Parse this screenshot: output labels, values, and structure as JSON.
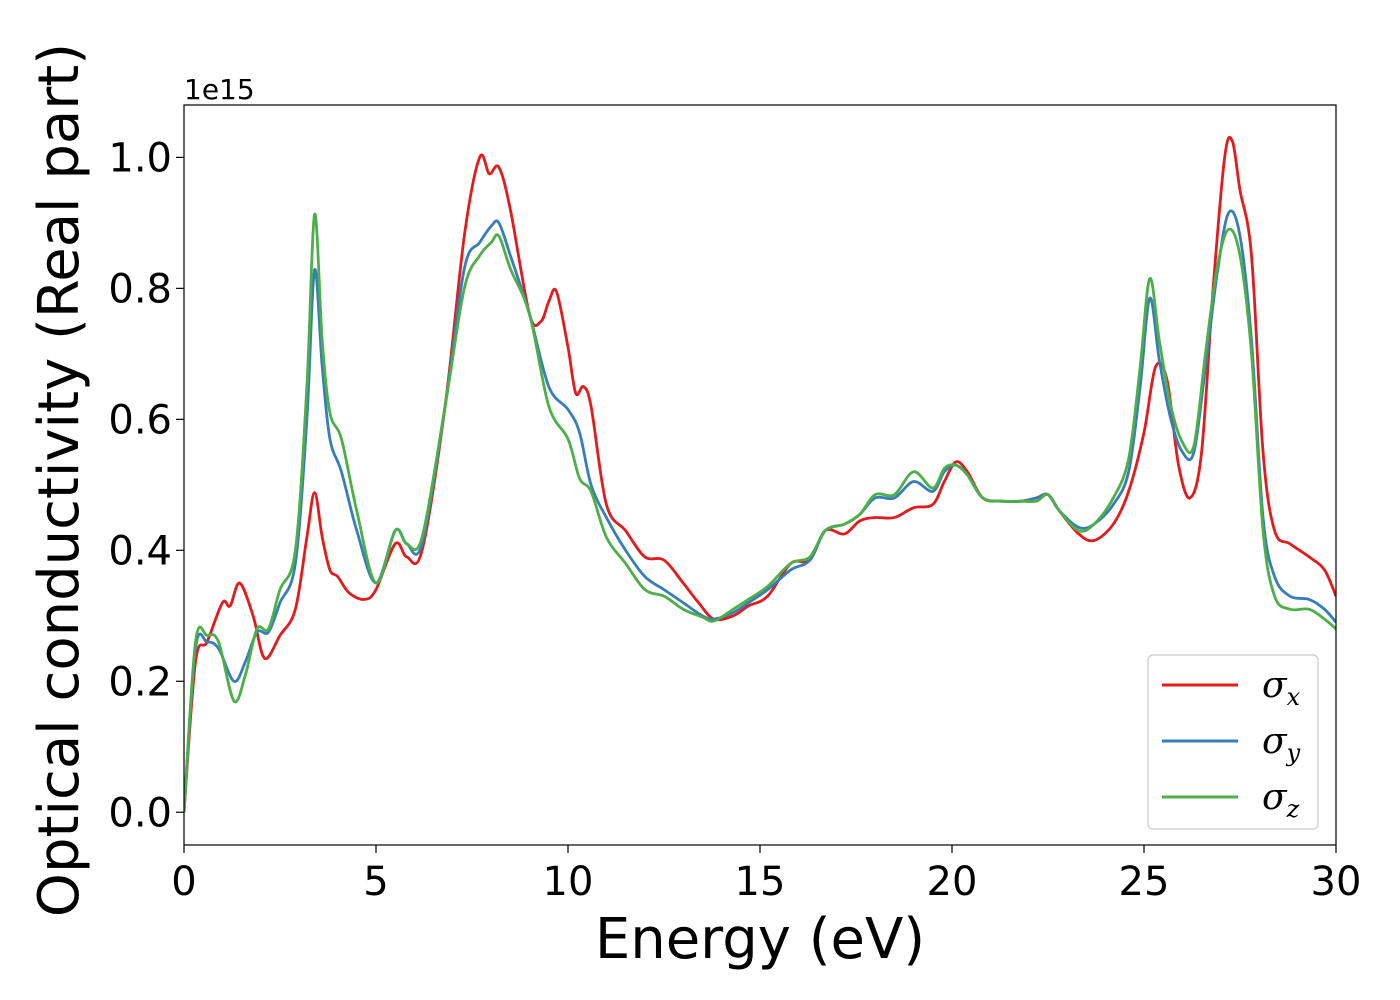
{
  "chart_data": {
    "type": "line",
    "title": "",
    "xlabel": "Energy (eV)",
    "ylabel": "Optical conductivity (Real part)",
    "y_offset_label": "1e15",
    "xlim": [
      0,
      30
    ],
    "ylim": [
      -0.05,
      1.08
    ],
    "xticks": [
      0,
      5,
      10,
      15,
      20,
      25,
      30
    ],
    "xtick_labels": [
      "0",
      "5",
      "10",
      "15",
      "20",
      "25",
      "30"
    ],
    "yticks": [
      0.0,
      0.2,
      0.4,
      0.6,
      0.8,
      1.0
    ],
    "ytick_labels": [
      "0.0",
      "0.2",
      "0.4",
      "0.6",
      "0.8",
      "1.0"
    ],
    "grid": false,
    "legend_position": "lower-right",
    "series": [
      {
        "name": "σx",
        "symbol": "σ",
        "subscript": "x",
        "color": "#e41a1c",
        "x": [
          0,
          0.3,
          0.6,
          1.0,
          1.2,
          1.45,
          1.8,
          2.1,
          2.5,
          2.9,
          3.2,
          3.4,
          3.6,
          3.8,
          4.0,
          4.3,
          4.7,
          5.0,
          5.5,
          5.8,
          6.2,
          6.8,
          7.3,
          7.7,
          7.95,
          8.2,
          8.5,
          9.0,
          9.3,
          9.5,
          9.7,
          10.0,
          10.2,
          10.4,
          10.6,
          11.0,
          11.5,
          12.0,
          12.5,
          13.0,
          13.4,
          13.8,
          14.3,
          14.7,
          15.2,
          15.8,
          16.3,
          16.7,
          17.2,
          17.6,
          18.0,
          18.5,
          19.0,
          19.5,
          19.8,
          20.1,
          20.4,
          20.8,
          21.3,
          21.8,
          22.2,
          22.5,
          22.8,
          23.3,
          23.7,
          24.2,
          24.6,
          25.0,
          25.3,
          25.6,
          25.9,
          26.2,
          26.5,
          26.8,
          27.1,
          27.3,
          27.5,
          27.8,
          28.1,
          28.4,
          28.8,
          29.3,
          29.7,
          30.0
        ],
        "y": [
          0,
          0.23,
          0.26,
          0.32,
          0.315,
          0.35,
          0.3,
          0.235,
          0.27,
          0.31,
          0.42,
          0.488,
          0.42,
          0.37,
          0.36,
          0.335,
          0.325,
          0.34,
          0.41,
          0.39,
          0.4,
          0.62,
          0.88,
          1.0,
          0.975,
          0.985,
          0.92,
          0.76,
          0.75,
          0.78,
          0.795,
          0.71,
          0.64,
          0.65,
          0.62,
          0.47,
          0.43,
          0.39,
          0.385,
          0.35,
          0.32,
          0.295,
          0.3,
          0.315,
          0.33,
          0.38,
          0.385,
          0.43,
          0.425,
          0.445,
          0.45,
          0.45,
          0.465,
          0.47,
          0.505,
          0.535,
          0.52,
          0.48,
          0.475,
          0.475,
          0.48,
          0.485,
          0.46,
          0.425,
          0.415,
          0.44,
          0.49,
          0.58,
          0.68,
          0.66,
          0.53,
          0.48,
          0.55,
          0.8,
          1.0,
          1.025,
          0.95,
          0.85,
          0.55,
          0.43,
          0.41,
          0.39,
          0.37,
          0.33
        ]
      },
      {
        "name": "σy",
        "symbol": "σ",
        "subscript": "y",
        "color": "#377eb8",
        "x": [
          0,
          0.3,
          0.6,
          0.9,
          1.3,
          1.6,
          1.9,
          2.2,
          2.5,
          2.9,
          3.2,
          3.4,
          3.6,
          3.8,
          4.1,
          4.5,
          5.0,
          5.5,
          5.8,
          6.2,
          6.8,
          7.3,
          7.7,
          8.0,
          8.2,
          8.5,
          9.0,
          9.5,
          10.0,
          10.3,
          10.6,
          11.0,
          11.5,
          12.0,
          12.5,
          13.0,
          13.5,
          13.8,
          14.3,
          14.7,
          15.2,
          15.8,
          16.3,
          16.7,
          17.2,
          17.6,
          18.0,
          18.5,
          19.0,
          19.5,
          19.8,
          20.1,
          20.4,
          20.8,
          21.3,
          21.8,
          22.2,
          22.5,
          22.8,
          23.3,
          23.7,
          24.2,
          24.6,
          24.9,
          25.15,
          25.4,
          25.7,
          26.0,
          26.3,
          26.6,
          26.9,
          27.2,
          27.5,
          27.8,
          28.1,
          28.4,
          28.8,
          29.3,
          29.7,
          30.0
        ],
        "y": [
          0,
          0.25,
          0.26,
          0.25,
          0.2,
          0.23,
          0.275,
          0.275,
          0.32,
          0.38,
          0.6,
          0.828,
          0.68,
          0.57,
          0.52,
          0.43,
          0.35,
          0.43,
          0.41,
          0.41,
          0.62,
          0.83,
          0.87,
          0.895,
          0.9,
          0.85,
          0.76,
          0.65,
          0.615,
          0.58,
          0.5,
          0.45,
          0.4,
          0.36,
          0.34,
          0.32,
          0.3,
          0.295,
          0.305,
          0.32,
          0.34,
          0.37,
          0.385,
          0.43,
          0.44,
          0.455,
          0.48,
          0.48,
          0.505,
          0.49,
          0.52,
          0.53,
          0.515,
          0.48,
          0.475,
          0.475,
          0.48,
          0.485,
          0.46,
          0.435,
          0.44,
          0.47,
          0.52,
          0.65,
          0.785,
          0.69,
          0.6,
          0.55,
          0.55,
          0.68,
          0.82,
          0.915,
          0.88,
          0.72,
          0.45,
          0.36,
          0.33,
          0.325,
          0.31,
          0.29
        ]
      },
      {
        "name": "σz",
        "symbol": "σ",
        "subscript": "z",
        "color": "#4daf4a",
        "x": [
          0,
          0.3,
          0.6,
          0.9,
          1.3,
          1.6,
          1.9,
          2.2,
          2.5,
          2.9,
          3.2,
          3.4,
          3.6,
          3.8,
          4.1,
          4.5,
          5.0,
          5.5,
          5.8,
          6.2,
          6.8,
          7.3,
          7.7,
          8.0,
          8.2,
          8.5,
          9.0,
          9.5,
          10.0,
          10.3,
          10.6,
          11.0,
          11.5,
          12.0,
          12.5,
          13.0,
          13.5,
          13.8,
          14.3,
          14.7,
          15.2,
          15.8,
          16.3,
          16.7,
          17.2,
          17.6,
          18.0,
          18.5,
          19.0,
          19.5,
          19.8,
          20.1,
          20.4,
          20.8,
          21.3,
          21.8,
          22.2,
          22.5,
          22.8,
          23.3,
          23.7,
          24.2,
          24.6,
          24.9,
          25.15,
          25.4,
          25.7,
          26.0,
          26.3,
          26.6,
          26.9,
          27.2,
          27.5,
          27.8,
          28.1,
          28.4,
          28.8,
          29.3,
          29.7,
          30.0
        ],
        "y": [
          0,
          0.26,
          0.27,
          0.26,
          0.17,
          0.21,
          0.28,
          0.28,
          0.34,
          0.4,
          0.65,
          0.913,
          0.72,
          0.61,
          0.57,
          0.46,
          0.35,
          0.43,
          0.41,
          0.42,
          0.62,
          0.8,
          0.85,
          0.87,
          0.88,
          0.83,
          0.76,
          0.62,
          0.57,
          0.51,
          0.49,
          0.42,
          0.38,
          0.34,
          0.33,
          0.31,
          0.298,
          0.292,
          0.31,
          0.325,
          0.345,
          0.38,
          0.39,
          0.43,
          0.44,
          0.455,
          0.485,
          0.485,
          0.52,
          0.495,
          0.525,
          0.53,
          0.515,
          0.48,
          0.475,
          0.475,
          0.475,
          0.485,
          0.46,
          0.43,
          0.44,
          0.48,
          0.54,
          0.68,
          0.815,
          0.72,
          0.62,
          0.565,
          0.56,
          0.7,
          0.83,
          0.89,
          0.85,
          0.7,
          0.43,
          0.33,
          0.31,
          0.31,
          0.295,
          0.28
        ]
      }
    ]
  }
}
